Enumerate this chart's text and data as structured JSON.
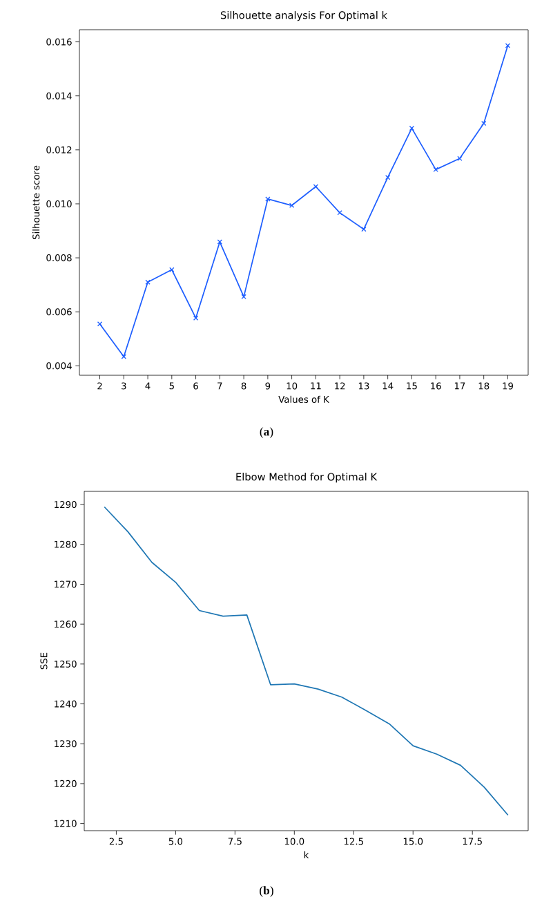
{
  "chart_data": [
    {
      "type": "line",
      "title": "Silhouette analysis For Optimal k",
      "xlabel": "Values of K",
      "ylabel": "Silhouette score",
      "x": [
        2,
        3,
        4,
        5,
        6,
        7,
        8,
        9,
        10,
        11,
        12,
        13,
        14,
        15,
        16,
        17,
        18,
        19
      ],
      "series": [
        {
          "color": "#1f5fff",
          "values": [
            0.00555,
            0.00434,
            0.0071,
            0.00756,
            0.00577,
            0.00859,
            0.00656,
            0.01018,
            0.00994,
            0.01064,
            0.00967,
            0.00906,
            0.01098,
            0.0128,
            0.01127,
            0.01168,
            0.01298,
            0.01586
          ]
        }
      ],
      "marker": "cross",
      "xlim": [
        1.15,
        19.85
      ],
      "xticks": [
        2,
        3,
        4,
        5,
        6,
        7,
        8,
        9,
        10,
        11,
        12,
        13,
        14,
        15,
        16,
        17,
        18,
        19
      ],
      "ylim": [
        0.00365,
        0.01645
      ],
      "yticks": [
        0.004,
        0.006,
        0.008,
        {
          "value": 0.01,
          "label": "0.010"
        },
        0.012,
        0.014,
        0.016
      ],
      "annotations": [
        "(**a**)"
      ]
    },
    {
      "type": "line",
      "title": "Elbow Method for Optimal K",
      "xlabel": "k",
      "ylabel": "SSE",
      "x": [
        2,
        3,
        4,
        5,
        6,
        7,
        8,
        9,
        10,
        11,
        12,
        13,
        14,
        15,
        16,
        17,
        18,
        19
      ],
      "series": [
        {
          "color": "#1f77b4",
          "values": [
            1289.4,
            1283.1,
            1275.5,
            1270.5,
            1263.4,
            1262.0,
            1262.3,
            1244.8,
            1245.0,
            1243.7,
            1241.7,
            1238.4,
            1235.0,
            1229.5,
            1227.4,
            1224.6,
            1219.1,
            1212.1
          ]
        }
      ],
      "xlim": [
        1.15,
        19.85
      ],
      "xticks": [
        2.5,
        {
          "value": 5,
          "label": "5.0"
        },
        7.5,
        {
          "value": 10,
          "label": "10.0"
        },
        12.5,
        {
          "value": 15,
          "label": "15.0"
        },
        17.5
      ],
      "ylim": [
        1208.2,
        1293.3
      ],
      "yticks": [
        1210,
        1220,
        1230,
        1240,
        1250,
        1260,
        1270,
        1280,
        1290
      ],
      "annotations": [
        "(**b**)"
      ]
    }
  ]
}
